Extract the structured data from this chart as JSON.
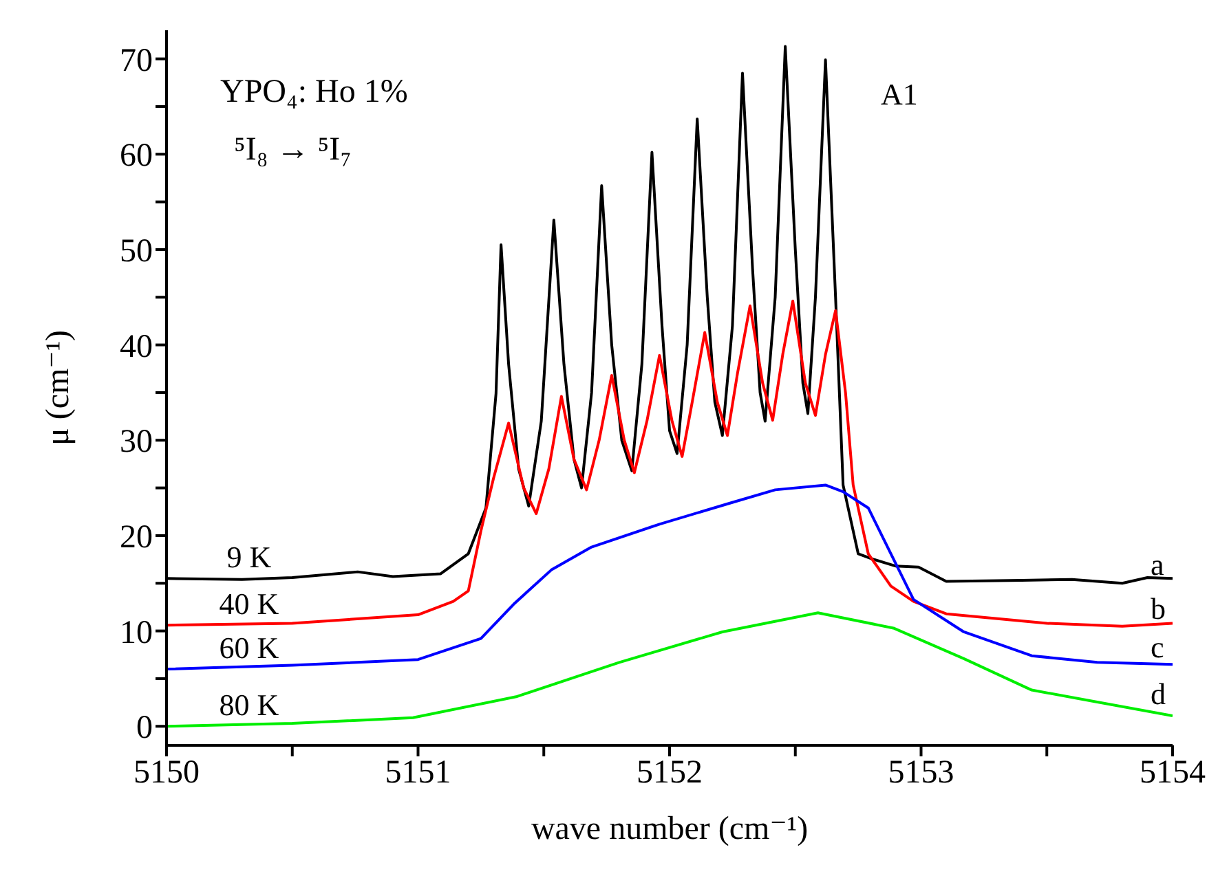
{
  "chart_data": {
    "type": "line",
    "xlabel": "wave number (cm⁻¹)",
    "ylabel": "μ (cm⁻¹)",
    "xlim": [
      5150,
      5154
    ],
    "xticks": [
      5150,
      {
        "value": 5150.5,
        "label": null
      },
      5151,
      {
        "value": 5151.5,
        "label": null
      },
      5152,
      {
        "value": 5152.5,
        "label": null
      },
      5153,
      {
        "value": 5153.5,
        "label": null
      },
      5154
    ],
    "ylim": [
      -2,
      73
    ],
    "yticks": [
      0,
      {
        "value": 5,
        "label": null
      },
      10,
      {
        "value": 15,
        "label": null
      },
      20,
      {
        "value": 25,
        "label": null
      },
      30,
      {
        "value": 35,
        "label": null
      },
      40,
      {
        "value": 45,
        "label": null
      },
      50,
      {
        "value": 55,
        "label": null
      },
      60,
      {
        "value": 65,
        "label": null
      },
      70
    ],
    "legend": false,
    "marker": "none",
    "line_style": "solid",
    "annotations": [
      "YPO₄: Ho 1%",
      "⁵I₈ → ⁵I₇",
      "A1",
      "a",
      "b",
      "c",
      "d"
    ],
    "series": [
      {
        "name": "9 K",
        "color": "#000000",
        "x": [
          5150,
          5150.3,
          5150.5,
          5150.76,
          5150.9,
          5151.09,
          5151.2,
          5151.27,
          5151.31,
          5151.33,
          5151.36,
          5151.4,
          5151.44,
          5151.49,
          5151.54,
          5151.58,
          5151.62,
          5151.65,
          5151.69,
          5151.73,
          5151.77,
          5151.81,
          5151.85,
          5151.89,
          5151.93,
          5151.97,
          5152,
          5152.03,
          5152.07,
          5152.11,
          5152.15,
          5152.18,
          5152.21,
          5152.25,
          5152.29,
          5152.33,
          5152.36,
          5152.38,
          5152.42,
          5152.46,
          5152.5,
          5152.53,
          5152.55,
          5152.58,
          5152.62,
          5152.66,
          5152.69,
          5152.75,
          5152.8,
          5152.9,
          5152.99,
          5153.1,
          5153.4,
          5153.6,
          5153.8,
          5153.9,
          5154
        ],
        "values": [
          15.5,
          15.4,
          15.6,
          16.2,
          15.7,
          16,
          18.1,
          22.9,
          34.9,
          50.5,
          38,
          27,
          23.1,
          32,
          53.1,
          38,
          28,
          25,
          35,
          56.7,
          40,
          30,
          26.8,
          38,
          60.2,
          42,
          31,
          28.6,
          40,
          63.7,
          45,
          34,
          30.5,
          42,
          68.5,
          48,
          35,
          32,
          45,
          71.3,
          50,
          36,
          32.8,
          45,
          69.9,
          45,
          25.3,
          18.1,
          17.6,
          16.8,
          16.7,
          15.2,
          15.3,
          15.4,
          15,
          15.6,
          15.5
        ]
      },
      {
        "name": "40 K",
        "color": "#ff0000",
        "x": [
          5150,
          5150.5,
          5151,
          5151.14,
          5151.2,
          5151.25,
          5151.3,
          5151.36,
          5151.42,
          5151.47,
          5151.52,
          5151.57,
          5151.62,
          5151.67,
          5151.72,
          5151.77,
          5151.82,
          5151.86,
          5151.91,
          5151.96,
          5152.01,
          5152.05,
          5152.09,
          5152.14,
          5152.19,
          5152.23,
          5152.27,
          5152.32,
          5152.37,
          5152.41,
          5152.45,
          5152.49,
          5152.54,
          5152.58,
          5152.62,
          5152.66,
          5152.7,
          5152.73,
          5152.79,
          5152.88,
          5152.97,
          5153.1,
          5153.5,
          5153.8,
          5154
        ],
        "values": [
          10.6,
          10.8,
          11.7,
          13.1,
          14.2,
          20.5,
          26,
          31.8,
          25,
          22.3,
          27,
          34.6,
          28,
          24.8,
          30,
          36.8,
          30,
          26.6,
          32,
          38.9,
          32,
          28.3,
          34,
          41.3,
          34,
          30.5,
          37,
          44.1,
          36,
          32.1,
          39,
          44.6,
          36,
          32.6,
          39,
          43.6,
          34.9,
          25.3,
          18.1,
          14.7,
          13.1,
          11.8,
          10.8,
          10.5,
          10.8
        ]
      },
      {
        "name": "60 K",
        "color": "#0000ff",
        "x": [
          5150,
          5150.5,
          5151,
          5151.25,
          5151.38,
          5151.53,
          5151.69,
          5151.96,
          5152.24,
          5152.42,
          5152.62,
          5152.69,
          5152.79,
          5152.88,
          5152.97,
          5153.17,
          5153.44,
          5153.7,
          5154
        ],
        "values": [
          6,
          6.4,
          7,
          9.2,
          12.8,
          16.4,
          18.8,
          21.2,
          23.4,
          24.8,
          25.3,
          24.6,
          22.9,
          18.1,
          13.3,
          9.9,
          7.4,
          6.7,
          6.5
        ]
      },
      {
        "name": "80 K",
        "color": "#00ee00",
        "x": [
          5150,
          5150.5,
          5150.98,
          5151.39,
          5151.8,
          5152.21,
          5152.59,
          5152.89,
          5153.17,
          5153.44,
          5154
        ],
        "values": [
          0,
          0.3,
          0.9,
          3.1,
          6.7,
          9.9,
          11.9,
          10.3,
          7.1,
          3.8,
          1.1
        ]
      }
    ]
  }
}
